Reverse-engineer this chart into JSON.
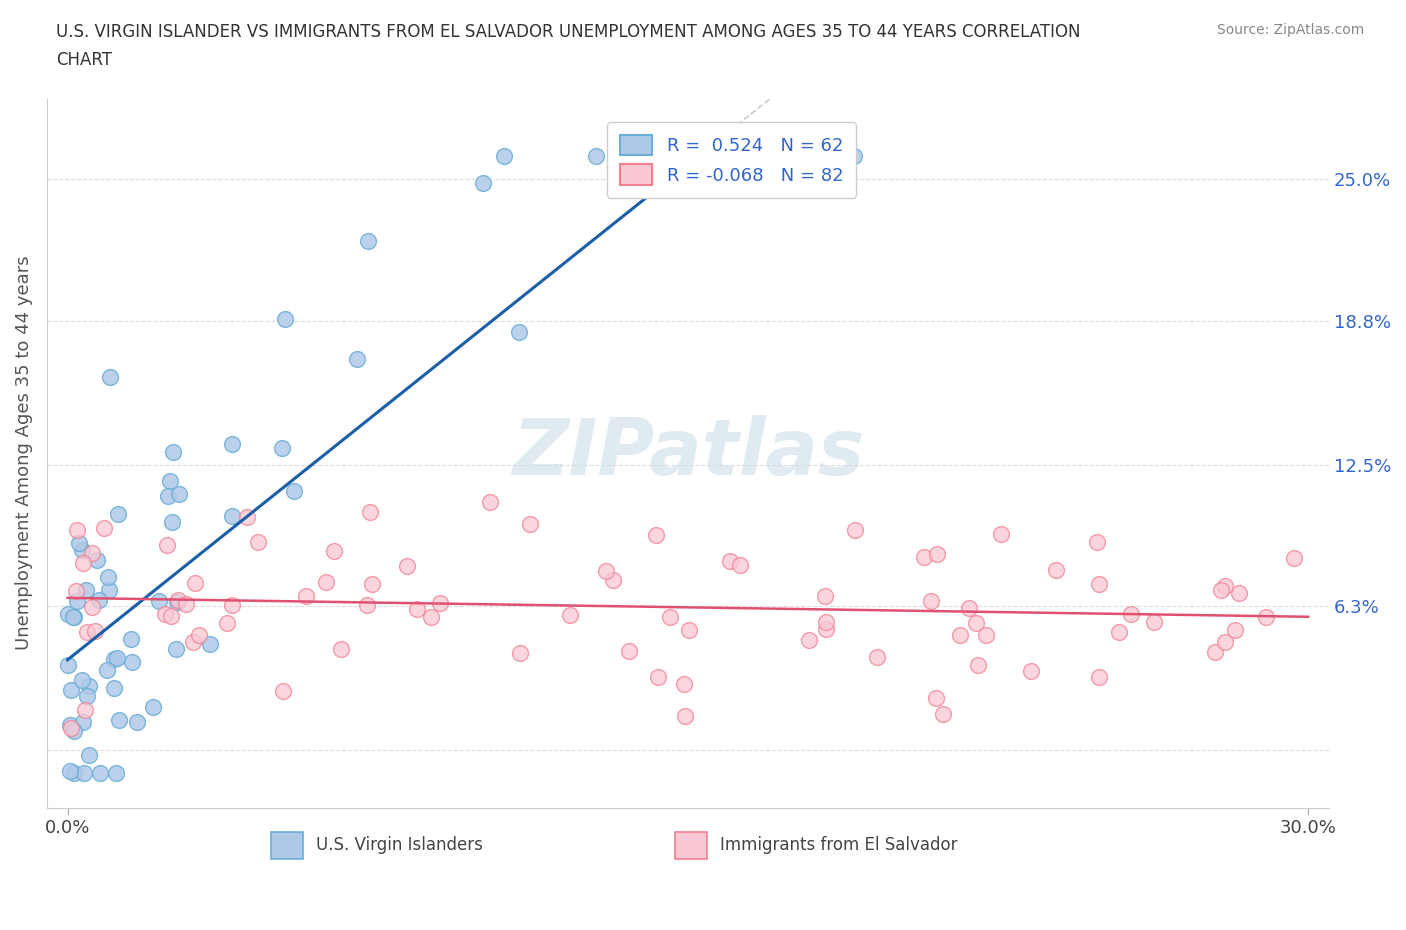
{
  "title_line1": "U.S. VIRGIN ISLANDER VS IMMIGRANTS FROM EL SALVADOR UNEMPLOYMENT AMONG AGES 35 TO 44 YEARS CORRELATION",
  "title_line2": "CHART",
  "source": "Source: ZipAtlas.com",
  "ylabel": "Unemployment Among Ages 35 to 44 years",
  "legend_r1": "R =  0.524   N = 62",
  "legend_r2": "R = -0.068   N = 82",
  "blue_face_color": "#aec8e8",
  "blue_edge_color": "#6aaed6",
  "blue_line_color": "#1a5fa8",
  "pink_face_color": "#f9c8d4",
  "pink_edge_color": "#f08090",
  "pink_line_color": "#e05070",
  "dash_color": "#cccccc",
  "watermark_color": "#ccdde8",
  "grid_color": "#dddddd",
  "ytick_color": "#3366cc",
  "xtick_color": "#444444",
  "ylabel_color": "#555555",
  "title_color": "#333333",
  "source_color": "#888888",
  "legend_text_color": "#3366cc",
  "bottom_legend_color": "#444444",
  "ytick_vals": [
    0.0,
    0.063,
    0.125,
    0.188,
    0.25
  ],
  "ytick_labels": [
    "",
    "6.3%",
    "12.5%",
    "18.8%",
    "25.0%"
  ],
  "xlim": [
    -0.005,
    0.305
  ],
  "ylim": [
    -0.025,
    0.285
  ]
}
